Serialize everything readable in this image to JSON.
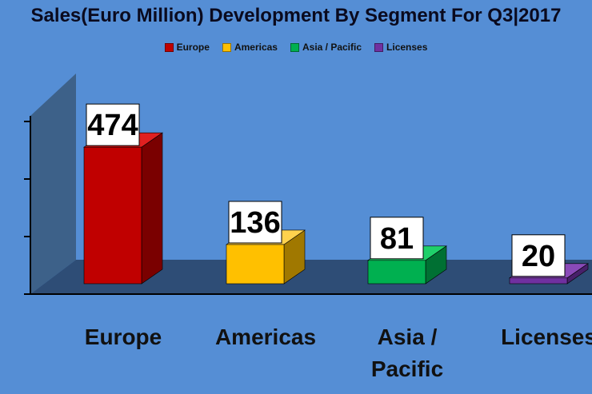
{
  "chart_data": {
    "type": "bar",
    "title": "Sales(Euro Million) Development By Segment For Q3|2017",
    "categories": [
      "Europe",
      "Americas",
      "Asia / Pacific",
      "Licenses"
    ],
    "category_label_lines": [
      [
        "Europe"
      ],
      [
        "Americas"
      ],
      [
        "Asia /",
        "Pacific"
      ],
      [
        "Licenses"
      ]
    ],
    "values": [
      474,
      136,
      81,
      20
    ],
    "data_labels": [
      "474",
      "136",
      "81",
      "20"
    ],
    "legend": [
      "Europe",
      "Americas",
      "Asia / Pacific",
      "Licenses"
    ],
    "legend_position": "top",
    "colors": [
      "#c00000",
      "#ffc000",
      "#00b050",
      "#7030a0"
    ],
    "side_colors": [
      "#7a0000",
      "#a07800",
      "#007033",
      "#48206a"
    ],
    "top_colors": [
      "#e02020",
      "#ffd24d",
      "#1fd06a",
      "#8a4ab8"
    ],
    "ylim": [
      0,
      480
    ],
    "style": "3d-column",
    "grid": false
  }
}
